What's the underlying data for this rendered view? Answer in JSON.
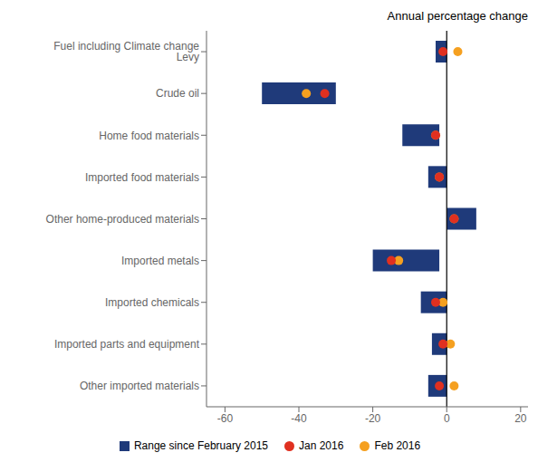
{
  "chart_data": {
    "type": "bar",
    "orientation": "horizontal",
    "title": "Annual percentage change",
    "categories": [
      "Fuel including Climate change Levy",
      "Crude oil",
      "Home food materials",
      "Imported food materials",
      "Other home-produced materials",
      "Imported metals",
      "Imported chemicals",
      "Imported parts and equipment",
      "Other imported materials"
    ],
    "series": [
      {
        "name": "Range since February 2015",
        "type": "bar",
        "color": "#1f3a7a",
        "values": [
          [
            -3,
            0
          ],
          [
            -50,
            -30
          ],
          [
            -12,
            -2
          ],
          [
            -5,
            0
          ],
          [
            0,
            8
          ],
          [
            -20,
            -2
          ],
          [
            -7,
            0
          ],
          [
            -4,
            0
          ],
          [
            -5,
            0
          ]
        ]
      },
      {
        "name": "Jan 2016",
        "type": "scatter",
        "color": "#e03020",
        "values": [
          -1,
          -33,
          -3,
          -2,
          2,
          -15,
          -3,
          -1,
          -2
        ]
      },
      {
        "name": "Feb 2016",
        "type": "scatter",
        "color": "#f5a020",
        "values": [
          3,
          -38,
          -3,
          -2,
          2,
          -13,
          -1,
          1,
          2
        ]
      }
    ],
    "xlim": [
      -65,
      22
    ],
    "xticks": [
      -60,
      -40,
      -20,
      0,
      20
    ],
    "grid": false,
    "legend": "bottom"
  }
}
